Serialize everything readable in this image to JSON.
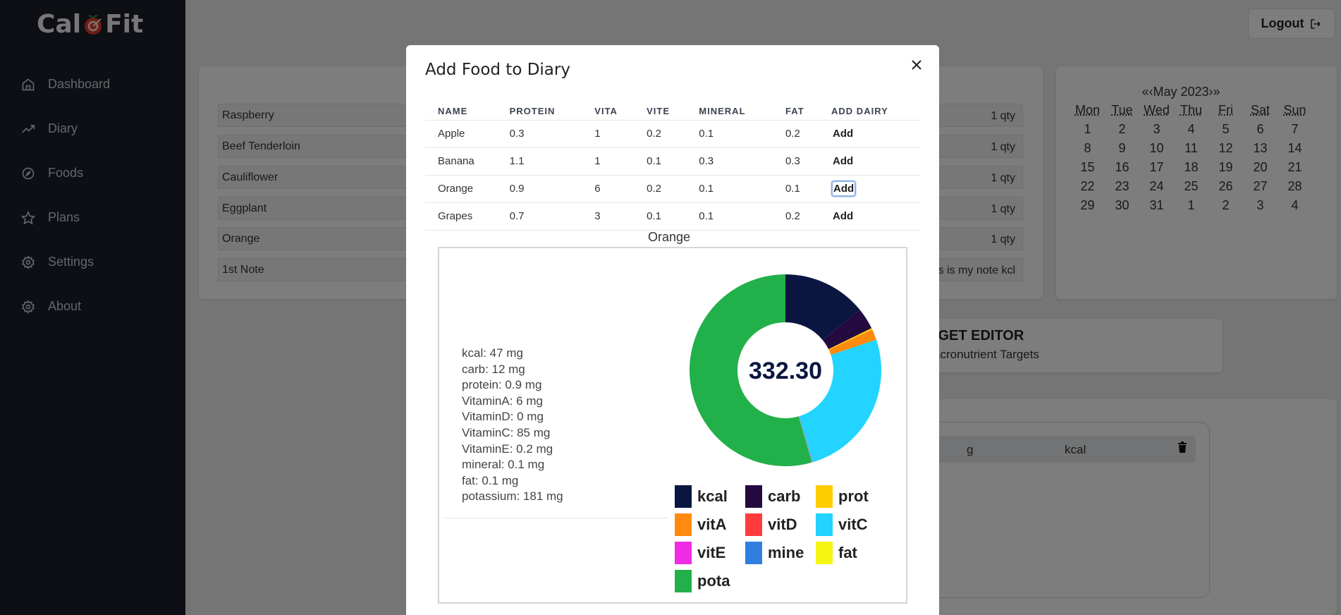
{
  "app": {
    "logo_left": "Cal",
    "logo_right": "Fit"
  },
  "sidebar": {
    "items": [
      {
        "label": "Dashboard",
        "icon": "home-icon"
      },
      {
        "label": "Diary",
        "icon": "trending-icon"
      },
      {
        "label": "Foods",
        "icon": "compass-icon"
      },
      {
        "label": "Plans",
        "icon": "star-icon"
      },
      {
        "label": "Settings",
        "icon": "gear-icon"
      },
      {
        "label": "About",
        "icon": "gear-icon"
      }
    ]
  },
  "header": {
    "logout_label": "Logout"
  },
  "diary": {
    "rows": [
      {
        "name": "Raspberry",
        "qty": "1 qty"
      },
      {
        "name": "Beef Tenderloin",
        "qty": "1 qty"
      },
      {
        "name": "Cauliflower",
        "qty": "1 qty"
      },
      {
        "name": "Eggplant",
        "qty": "1 qty"
      },
      {
        "name": "Orange",
        "qty": "1 qty"
      },
      {
        "name": "1st Note",
        "qty": "his is my note kcl"
      }
    ]
  },
  "target_editor": {
    "title": "RGET EDITOR",
    "subtitle": "acronutrient Targets"
  },
  "log_table": {
    "col_g": "g",
    "col_kcal": "kcal"
  },
  "calendar": {
    "title": "«‹May 2023›»",
    "day_headers": [
      "Mon",
      "Tue",
      "Wed",
      "Thu",
      "Fri",
      "Sat",
      "Sun"
    ],
    "days": [
      "1",
      "2",
      "3",
      "4",
      "5",
      "6",
      "7",
      "8",
      "9",
      "10",
      "11",
      "12",
      "13",
      "14",
      "15",
      "16",
      "17",
      "18",
      "19",
      "20",
      "21",
      "22",
      "23",
      "24",
      "25",
      "26",
      "27",
      "28",
      "29",
      "30",
      "31",
      "1",
      "2",
      "3",
      "4"
    ]
  },
  "modal": {
    "title": "Add Food to Diary",
    "columns": [
      "NAME",
      "PROTEIN",
      "VITA",
      "VITE",
      "MINERAL",
      "FAT",
      "ADD DAIRY"
    ],
    "rows": [
      {
        "name": "Apple",
        "protein": "0.3",
        "vita": "1",
        "vite": "0.2",
        "mineral": "0.1",
        "fat": "0.2",
        "action": "Add"
      },
      {
        "name": "Banana",
        "protein": "1.1",
        "vita": "1",
        "vite": "0.1",
        "mineral": "0.3",
        "fat": "0.3",
        "action": "Add"
      },
      {
        "name": "Orange",
        "protein": "0.9",
        "vita": "6",
        "vite": "0.2",
        "mineral": "0.1",
        "fat": "0.1",
        "action": "Add"
      },
      {
        "name": "Grapes",
        "protein": "0.7",
        "vita": "3",
        "vite": "0.1",
        "mineral": "0.1",
        "fat": "0.2",
        "action": "Add"
      }
    ],
    "selected_food": "Orange",
    "nutrients": [
      "kcal: 47 mg",
      "carb: 12 mg",
      "protein: 0.9 mg",
      "VitaminA: 6 mg",
      "VitaminD: 0 mg",
      "VitaminC: 85 mg",
      "VitaminE: 0.2 mg",
      "mineral: 0.1 mg",
      "fat: 0.1 mg",
      "potassium: 181 mg"
    ]
  },
  "chart_data": {
    "type": "pie",
    "center_label": "332.30",
    "series": [
      {
        "name": "kcal",
        "value": 47,
        "color": "#0a1640"
      },
      {
        "name": "carb",
        "value": 12,
        "color": "#240a3e"
      },
      {
        "name": "prot",
        "value": 0.9,
        "color": "#ffcc00"
      },
      {
        "name": "vitA",
        "value": 6,
        "color": "#ff8a0d"
      },
      {
        "name": "vitD",
        "value": 0,
        "color": "#ff3b3b"
      },
      {
        "name": "vitC",
        "value": 85,
        "color": "#22d4ff"
      },
      {
        "name": "vitE",
        "value": 0.2,
        "color": "#f02be6"
      },
      {
        "name": "mine",
        "value": 0.1,
        "color": "#2f7fe0"
      },
      {
        "name": "fat",
        "value": 0.1,
        "color": "#f5f514"
      },
      {
        "name": "pota",
        "value": 181,
        "color": "#22b04a"
      }
    ],
    "legend_position": "bottom"
  }
}
